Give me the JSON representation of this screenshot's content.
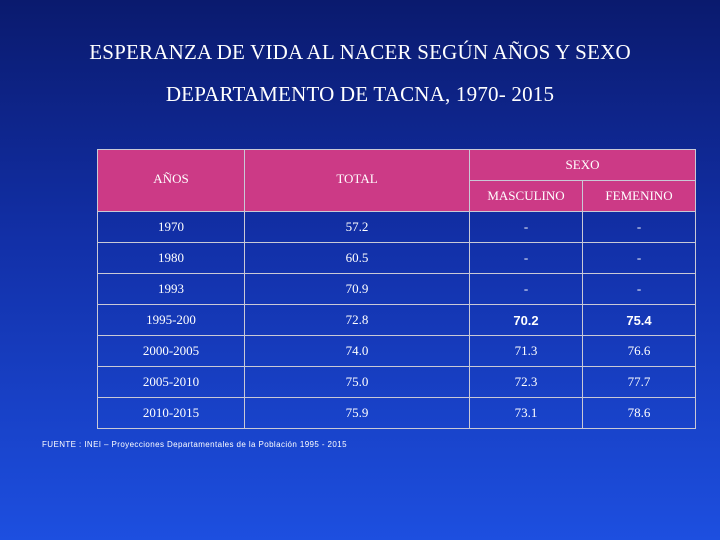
{
  "title": {
    "line1": "ESPERANZA DE VIDA AL NACER SEGÚN AÑOS Y SEXO",
    "line2": "DEPARTAMENTO DE TACNA, 1970- 2015"
  },
  "table": {
    "headers": {
      "anos": "AÑOS",
      "total": "TOTAL",
      "sexo": "SEXO",
      "masculino": "MASCULINO",
      "femenino": "FEMENINO"
    },
    "rows": [
      {
        "anos": "1970",
        "total": "57.2",
        "masculino": "-",
        "femenino": "-"
      },
      {
        "anos": "1980",
        "total": "60.5",
        "masculino": "-",
        "femenino": "-"
      },
      {
        "anos": "1993",
        "total": "70.9",
        "masculino": "-",
        "femenino": "-"
      },
      {
        "anos": "1995-200",
        "total": "72.8",
        "masculino": "70.2",
        "femenino": "75.4"
      },
      {
        "anos": "2000-2005",
        "total": "74.0",
        "masculino": "71.3",
        "femenino": "76.6"
      },
      {
        "anos": "2005-2010",
        "total": "75.0",
        "masculino": "72.3",
        "femenino": "77.7"
      },
      {
        "anos": "2010-2015",
        "total": "75.9",
        "masculino": "73.1",
        "femenino": "78.6"
      }
    ]
  },
  "source": "FUENTE : INEI – Proyecciones Departamentales de la Población 1995 - 2015",
  "colors": {
    "header_bg": "#cc3a86",
    "background_top": "#0a1a6e",
    "background_bottom": "#1d4fe0"
  }
}
